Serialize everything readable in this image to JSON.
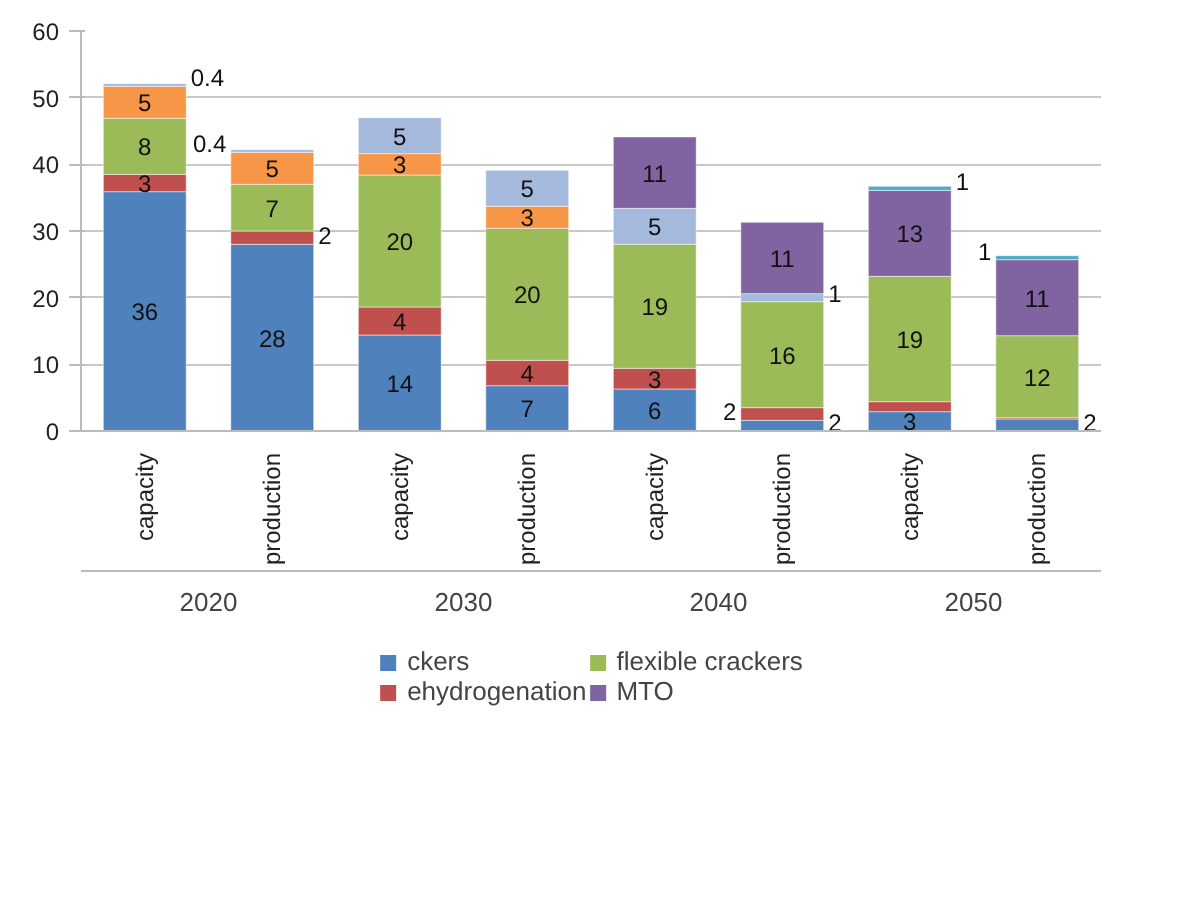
{
  "chart_data": {
    "type": "bar",
    "stacked": true,
    "categories": [
      "capacity",
      "production",
      "capacity",
      "production",
      "capacity",
      "production",
      "capacity",
      "production"
    ],
    "series": [
      {
        "name": "ckers",
        "color": "#4f81bd",
        "values": [
          35.9,
          28.0,
          14.4,
          6.8,
          6.3,
          1.6,
          2.9,
          1.8
        ],
        "value_labels": [
          "36",
          "28",
          "14",
          "7",
          "6",
          "2",
          "3",
          "2"
        ]
      },
      {
        "name": "ehydrogenation",
        "color": "#c0504d",
        "values": [
          2.6,
          2.0,
          4.2,
          3.8,
          3.1,
          1.9,
          1.5,
          0.2
        ],
        "value_labels": [
          "3",
          "2",
          "4",
          "4",
          "3",
          "2",
          null,
          null
        ]
      },
      {
        "name": "flexible crackers",
        "color": "#9bbb59",
        "values": [
          8.4,
          7.0,
          19.8,
          19.8,
          18.6,
          15.9,
          18.8,
          12.3
        ],
        "value_labels": [
          "8",
          "7",
          "20",
          "20",
          "19",
          "16",
          "19",
          "12"
        ]
      },
      {
        "color": "#f79646",
        "values": [
          4.8,
          4.8,
          3.2,
          3.3,
          null,
          null,
          null,
          null
        ],
        "value_labels": [
          "5",
          "5",
          "3",
          "3",
          null,
          null,
          null,
          null
        ]
      },
      {
        "color": "#a5b9dc",
        "values": [
          0.4,
          0.4,
          5.4,
          5.4,
          5.4,
          1.2,
          null,
          null
        ],
        "value_labels": [
          "0.4",
          "0.4",
          "5",
          "5",
          "5",
          "1",
          null,
          null
        ]
      },
      {
        "name": "MTO",
        "color": "#8064a2",
        "values": [
          null,
          null,
          null,
          null,
          10.7,
          10.7,
          12.9,
          11.4
        ],
        "value_labels": [
          null,
          null,
          null,
          null,
          "11",
          "11",
          "13",
          "11"
        ]
      },
      {
        "color": "#4bacc6",
        "values": [
          null,
          null,
          null,
          null,
          null,
          null,
          0.6,
          0.6
        ],
        "value_labels": [
          null,
          null,
          null,
          null,
          null,
          null,
          "1",
          "1"
        ]
      }
    ],
    "annotations": [
      "2020",
      "2030",
      "2040",
      "2050"
    ],
    "ylim": [
      0,
      60
    ],
    "yticks": [
      0,
      10,
      20,
      30,
      40,
      50,
      60
    ],
    "grid": "y",
    "legend": "bottom"
  }
}
